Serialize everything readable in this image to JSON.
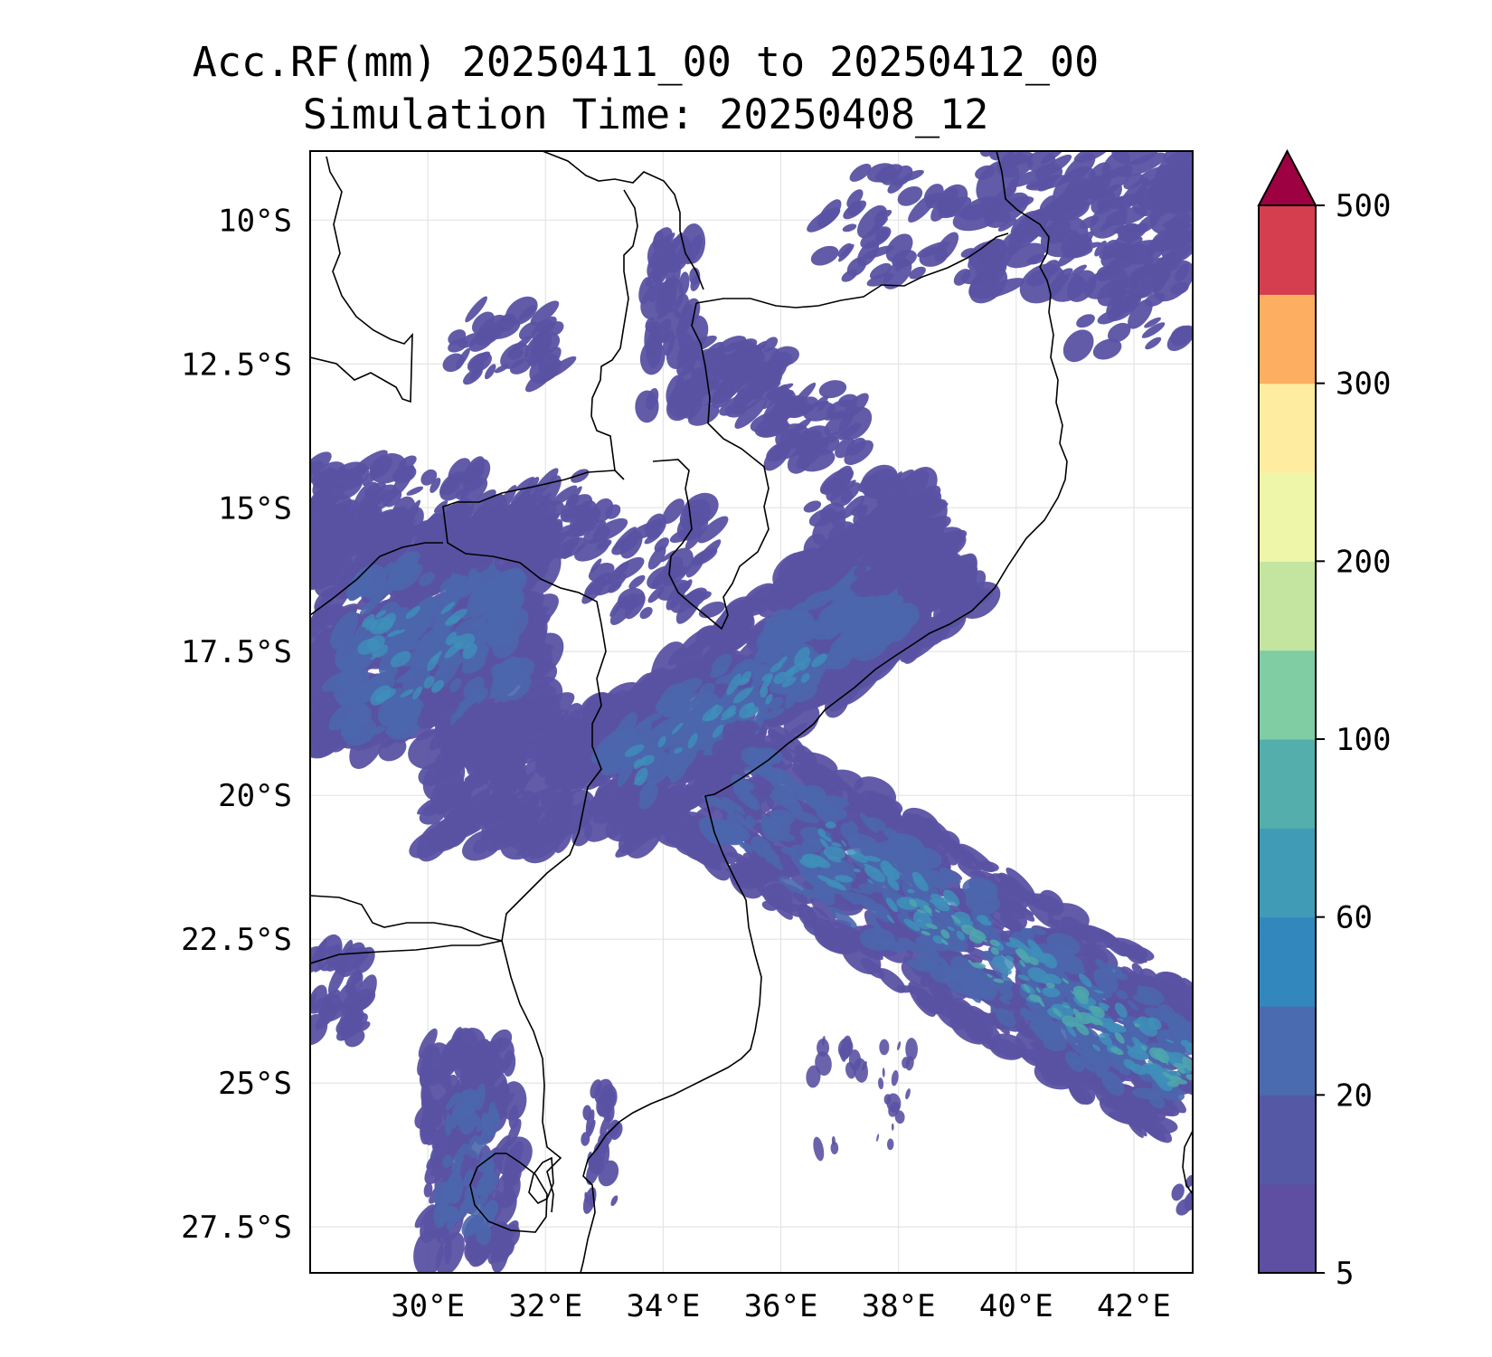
{
  "title": {
    "line1": "Acc.RF(mm) 20250411_00 to 20250412_00",
    "line2": "Simulation Time: 20250408_12"
  },
  "map": {
    "lon_range": [
      28.0,
      43.0
    ],
    "lat_range": [
      -28.3,
      -8.8
    ],
    "lon_ticks": [
      {
        "value": 30,
        "label": "30°E"
      },
      {
        "value": 32,
        "label": "32°E"
      },
      {
        "value": 34,
        "label": "34°E"
      },
      {
        "value": 36,
        "label": "36°E"
      },
      {
        "value": 38,
        "label": "38°E"
      },
      {
        "value": 40,
        "label": "40°E"
      },
      {
        "value": 42,
        "label": "42°E"
      }
    ],
    "lat_ticks": [
      {
        "value": -10,
        "label": "10°S"
      },
      {
        "value": -12.5,
        "label": "12.5°S"
      },
      {
        "value": -15,
        "label": "15°S"
      },
      {
        "value": -17.5,
        "label": "17.5°S"
      },
      {
        "value": -20,
        "label": "20°S"
      },
      {
        "value": -22.5,
        "label": "22.5°S"
      },
      {
        "value": -25,
        "label": "25°S"
      },
      {
        "value": -27.5,
        "label": "27.5°S"
      }
    ],
    "gridlines": true
  },
  "colorbar": {
    "tick_labels": [
      "5",
      "20",
      "60",
      "100",
      "200",
      "300",
      "500"
    ],
    "tick_levels": [
      0,
      2,
      4,
      6,
      8,
      10,
      12
    ],
    "extend": "max",
    "extend_color": "#9e0142",
    "colors": [
      "#5e4fa2",
      "#5558a5",
      "#4a6bb0",
      "#3288bd",
      "#3f9bb6",
      "#53aeac",
      "#80cca3",
      "#c3e5a0",
      "#eef7a9",
      "#feeca1",
      "#fdae61",
      "#d53e4f"
    ]
  },
  "rain_colors": {
    "light": "#5a52a3",
    "moderate": "#4b66ad",
    "heavy": "#3f8fba",
    "intense": "#4fa7ad"
  }
}
